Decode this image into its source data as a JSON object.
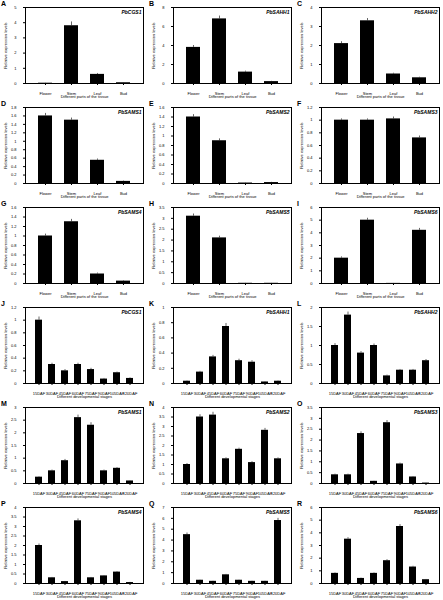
{
  "chart_data": [
    {
      "label": "A",
      "type": "bar",
      "title": "PbCGS1",
      "x_label": "Different parts of the tissue",
      "y_label": "Relative expression levels",
      "categories": [
        "Flower",
        "Stem",
        "Leaf",
        "Bud"
      ],
      "values": [
        0.02,
        3.8,
        0.6,
        0.05
      ],
      "errors": [
        0.01,
        0.25,
        0.06,
        0.01
      ],
      "color": "#000000",
      "ylim": [
        0,
        5
      ],
      "yticks": [
        0,
        1,
        2,
        3,
        4,
        5
      ]
    },
    {
      "label": "B",
      "type": "bar",
      "title": "PbSAHH1",
      "x_label": "Different parts of the tissue",
      "y_label": "Relative expression levels",
      "categories": [
        "Flower",
        "Stem",
        "Leaf",
        "Bud"
      ],
      "values": [
        3.8,
        6.8,
        1.2,
        0.2
      ],
      "errors": [
        0.2,
        0.3,
        0.1,
        0.03
      ],
      "color": "#000000",
      "ylim": [
        0,
        8
      ],
      "yticks": [
        0,
        2,
        4,
        6,
        8
      ]
    },
    {
      "label": "C",
      "type": "bar",
      "title": "PbSAHH2",
      "x_label": "Different parts of the tissue",
      "y_label": "Relative expression levels",
      "categories": [
        "Flower",
        "Stem",
        "Leaf",
        "Bud"
      ],
      "values": [
        2.1,
        3.3,
        0.5,
        0.3
      ],
      "errors": [
        0.1,
        0.12,
        0.04,
        0.03
      ],
      "color": "#000000",
      "ylim": [
        0,
        4
      ],
      "yticks": [
        0,
        1,
        2,
        3,
        4
      ]
    },
    {
      "label": "D",
      "type": "bar",
      "title": "PbSAMS1",
      "x_label": "Different parts of the tissue",
      "y_label": "Relative expression levels",
      "categories": [
        "Flower",
        "Stem",
        "Leaf",
        "Bud"
      ],
      "values": [
        1.6,
        1.5,
        0.55,
        0.05
      ],
      "errors": [
        0.06,
        0.05,
        0.03,
        0.01
      ],
      "color": "#000000",
      "ylim": [
        0,
        1.8
      ],
      "yticks": [
        0,
        0.2,
        0.4,
        0.6,
        0.8,
        1,
        1.2,
        1.4,
        1.6,
        1.8
      ]
    },
    {
      "label": "E",
      "type": "bar",
      "title": "PbSAMS2",
      "x_label": "Different parts of the tissue",
      "y_label": "Relative expression levels",
      "categories": [
        "Flower",
        "Stem",
        "Leaf",
        "Bud"
      ],
      "values": [
        1.4,
        0.9,
        0.01,
        0.02
      ],
      "errors": [
        0.05,
        0.04,
        0.005,
        0.005
      ],
      "color": "#000000",
      "ylim": [
        0,
        1.6
      ],
      "yticks": [
        0,
        0.2,
        0.4,
        0.6,
        0.8,
        1,
        1.2,
        1.4,
        1.6
      ]
    },
    {
      "label": "F",
      "type": "bar",
      "title": "PbSAMS3",
      "x_label": "Different parts of the tissue",
      "y_label": "Relative expression levels",
      "categories": [
        "Flower",
        "Stem",
        "Leaf",
        "Bud"
      ],
      "values": [
        1.0,
        1.0,
        1.02,
        0.72
      ],
      "errors": [
        0.02,
        0.02,
        0.03,
        0.03
      ],
      "color": "#000000",
      "ylim": [
        0,
        1.2
      ],
      "yticks": [
        0,
        0.2,
        0.4,
        0.6,
        0.8,
        1,
        1.2
      ]
    },
    {
      "label": "G",
      "type": "bar",
      "title": "PbSAMS4",
      "x_label": "Different parts of the tissue",
      "y_label": "Relative expression levels",
      "categories": [
        "Flower",
        "Stem",
        "Leaf",
        "Bud"
      ],
      "values": [
        1.0,
        1.3,
        0.2,
        0.05
      ],
      "errors": [
        0.04,
        0.05,
        0.02,
        0.01
      ],
      "color": "#000000",
      "ylim": [
        0,
        1.6
      ],
      "yticks": [
        0,
        0.2,
        0.4,
        0.6,
        0.8,
        1,
        1.2,
        1.4,
        1.6
      ]
    },
    {
      "label": "H",
      "type": "bar",
      "title": "PbSAMS5",
      "x_label": "Different parts of the tissue",
      "y_label": "Relative expression levels",
      "categories": [
        "Flower",
        "Stem",
        "Leaf",
        "Bud"
      ],
      "values": [
        3.1,
        2.1,
        0.01,
        0.01
      ],
      "errors": [
        0.1,
        0.08,
        0.005,
        0.005
      ],
      "color": "#000000",
      "ylim": [
        0,
        3.5
      ],
      "yticks": [
        0,
        0.5,
        1,
        1.5,
        2,
        2.5,
        3,
        3.5
      ]
    },
    {
      "label": "I",
      "type": "bar",
      "title": "PbSAMS6",
      "x_label": "Different parts of the tissue",
      "y_label": "Relative expression levels",
      "categories": [
        "Flower",
        "Stem",
        "Leaf",
        "Bud"
      ],
      "values": [
        2.0,
        5.0,
        0.01,
        4.2
      ],
      "errors": [
        0.1,
        0.15,
        0.005,
        0.15
      ],
      "color": "#000000",
      "ylim": [
        0,
        6
      ],
      "yticks": [
        0,
        1,
        2,
        3,
        4,
        5,
        6
      ]
    },
    {
      "label": "J",
      "type": "bar",
      "title": "PbCGS1",
      "x_label": "Different developmental stages",
      "y_label": "Relative expression levels",
      "categories": [
        "15DAF",
        "30DAF",
        "45DAF",
        "60DAF",
        "75DAF",
        "90DAF",
        "105DAF",
        "120DAF"
      ],
      "values": [
        1.0,
        0.3,
        0.2,
        0.3,
        0.22,
        0.07,
        0.17,
        0.08
      ],
      "errors": [
        0.05,
        0.02,
        0.02,
        0.02,
        0.02,
        0.01,
        0.01,
        0.01
      ],
      "color": "#000000",
      "ylim": [
        0,
        1.2
      ],
      "yticks": [
        0,
        0.2,
        0.4,
        0.6,
        0.8,
        1,
        1.2
      ]
    },
    {
      "label": "K",
      "type": "bar",
      "title": "PbSAHH1",
      "x_label": "Different developmental stages",
      "y_label": "Relative expression levels",
      "categories": [
        "15DAF",
        "30DAF",
        "45DAF",
        "60DAF",
        "75DAF",
        "90DAF",
        "105DAF",
        "120DAF"
      ],
      "values": [
        0.03,
        0.15,
        0.35,
        0.75,
        0.3,
        0.28,
        0.02,
        0.03
      ],
      "errors": [
        0.005,
        0.01,
        0.02,
        0.04,
        0.02,
        0.02,
        0.005,
        0.005
      ],
      "color": "#000000",
      "ylim": [
        0,
        1
      ],
      "yticks": [
        0,
        0.2,
        0.4,
        0.6,
        0.8,
        1
      ]
    },
    {
      "label": "L",
      "type": "bar",
      "title": "PbSAHH2",
      "x_label": "Different developmental stages",
      "y_label": "Relative expression levels",
      "categories": [
        "15DAF",
        "30DAF",
        "45DAF",
        "60DAF",
        "75DAF",
        "90DAF",
        "105DAF",
        "120DAF"
      ],
      "values": [
        1.0,
        1.8,
        0.8,
        1.0,
        0.2,
        0.35,
        0.35,
        0.6
      ],
      "errors": [
        0.05,
        0.08,
        0.04,
        0.04,
        0.02,
        0.02,
        0.02,
        0.03
      ],
      "color": "#000000",
      "ylim": [
        0,
        2
      ],
      "yticks": [
        0,
        0.5,
        1,
        1.5,
        2
      ]
    },
    {
      "label": "M",
      "type": "bar",
      "title": "PbSAMS1",
      "x_label": "Different developmental stages",
      "y_label": "Relative expression levels",
      "categories": [
        "15DAF",
        "30DAF",
        "45DAF",
        "60DAF",
        "75DAF",
        "90DAF",
        "105DAF",
        "120DAF"
      ],
      "values": [
        0.25,
        0.5,
        0.9,
        2.6,
        2.3,
        0.5,
        0.6,
        0.1
      ],
      "errors": [
        0.02,
        0.03,
        0.05,
        0.1,
        0.1,
        0.03,
        0.03,
        0.01
      ],
      "color": "#000000",
      "ylim": [
        0,
        3
      ],
      "yticks": [
        0,
        0.5,
        1,
        1.5,
        2,
        2.5,
        3
      ]
    },
    {
      "label": "N",
      "type": "bar",
      "title": "PbSAMS2",
      "x_label": "Different developmental stages",
      "y_label": "Relative expression levels",
      "categories": [
        "15DAF",
        "30DAF",
        "45DAF",
        "60DAF",
        "75DAF",
        "90DAF",
        "105DAF",
        "120DAF"
      ],
      "values": [
        1.0,
        3.5,
        3.6,
        1.3,
        1.8,
        1.1,
        2.8,
        1.3
      ],
      "errors": [
        0.05,
        0.12,
        0.15,
        0.05,
        0.06,
        0.05,
        0.1,
        0.05
      ],
      "color": "#000000",
      "ylim": [
        0,
        4
      ],
      "yticks": [
        0,
        0.5,
        1,
        1.5,
        2,
        2.5,
        3,
        3.5,
        4
      ]
    },
    {
      "label": "O",
      "type": "bar",
      "title": "PbSAMS3",
      "x_label": "Different developmental stages",
      "y_label": "Relative expression levels",
      "categories": [
        "15DAF",
        "30DAF",
        "45DAF",
        "60DAF",
        "75DAF",
        "90DAF",
        "105DAF",
        "120DAF"
      ],
      "values": [
        0.4,
        0.4,
        2.3,
        0.1,
        2.8,
        0.9,
        0.3,
        0.02
      ],
      "errors": [
        0.03,
        0.03,
        0.08,
        0.01,
        0.1,
        0.04,
        0.02,
        0.005
      ],
      "color": "#000000",
      "ylim": [
        0,
        3.5
      ],
      "yticks": [
        0,
        0.5,
        1,
        1.5,
        2,
        2.5,
        3,
        3.5
      ]
    },
    {
      "label": "P",
      "type": "bar",
      "title": "PbSAMS4",
      "x_label": "Different developmental stages",
      "y_label": "Relative expression levels",
      "categories": [
        "15DAF",
        "30DAF",
        "45DAF",
        "60DAF",
        "75DAF",
        "90DAF",
        "105DAF",
        "120DAF"
      ],
      "values": [
        2.0,
        0.3,
        0.1,
        3.3,
        0.3,
        0.4,
        0.6,
        0.05
      ],
      "errors": [
        0.08,
        0.02,
        0.01,
        0.1,
        0.02,
        0.02,
        0.03,
        0.01
      ],
      "color": "#000000",
      "ylim": [
        0,
        4
      ],
      "yticks": [
        0,
        0.5,
        1,
        1.5,
        2,
        2.5,
        3,
        3.5,
        4
      ]
    },
    {
      "label": "Q",
      "type": "bar",
      "title": "PbSAMS5",
      "x_label": "Different developmental stages",
      "y_label": "Relative expression levels",
      "categories": [
        "15DAF",
        "30DAF",
        "45DAF",
        "60DAF",
        "75DAF",
        "90DAF",
        "105DAF",
        "120DAF"
      ],
      "values": [
        4.5,
        0.3,
        0.2,
        0.8,
        0.3,
        0.2,
        0.2,
        5.8
      ],
      "errors": [
        0.15,
        0.02,
        0.02,
        0.04,
        0.02,
        0.02,
        0.02,
        0.2
      ],
      "color": "#000000",
      "ylim": [
        0,
        7
      ],
      "yticks": [
        0,
        1,
        2,
        3,
        4,
        5,
        6,
        7
      ]
    },
    {
      "label": "R",
      "type": "bar",
      "title": "PbSAMS6",
      "x_label": "Different developmental stages",
      "y_label": "Relative expression levels",
      "categories": [
        "15DAF",
        "30DAF",
        "45DAF",
        "60DAF",
        "75DAF",
        "90DAF",
        "105DAF",
        "120DAF"
      ],
      "values": [
        0.8,
        3.5,
        0.4,
        0.8,
        1.8,
        4.5,
        1.3,
        0.3
      ],
      "errors": [
        0.04,
        0.12,
        0.03,
        0.04,
        0.08,
        0.15,
        0.06,
        0.02
      ],
      "color": "#000000",
      "ylim": [
        0,
        6
      ],
      "yticks": [
        0,
        1,
        2,
        3,
        4,
        5,
        6
      ]
    }
  ]
}
